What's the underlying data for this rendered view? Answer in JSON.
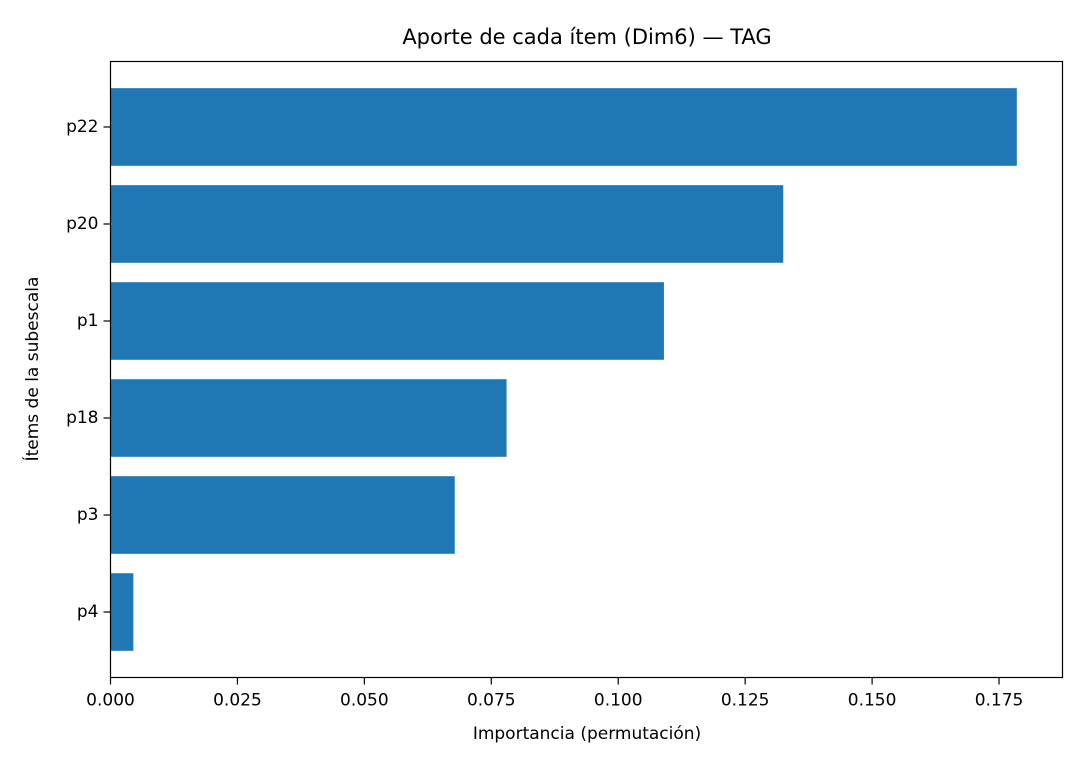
{
  "chart_data": {
    "type": "bar",
    "orientation": "horizontal",
    "title": "Aporte de cada ítem (Dim6) — TAG",
    "xlabel": "Importancia (permutación)",
    "ylabel": "Ítems de la subescala",
    "categories": [
      "p22",
      "p20",
      "p1",
      "p18",
      "p3",
      "p4"
    ],
    "values": [
      0.1785,
      0.1325,
      0.109,
      0.078,
      0.0678,
      0.0045
    ],
    "xlim": [
      0,
      0.1875
    ],
    "xticks": [
      "0.000",
      "0.025",
      "0.050",
      "0.075",
      "0.100",
      "0.125",
      "0.150",
      "0.175"
    ],
    "grid": false,
    "bar_color": "#1f77b4"
  }
}
